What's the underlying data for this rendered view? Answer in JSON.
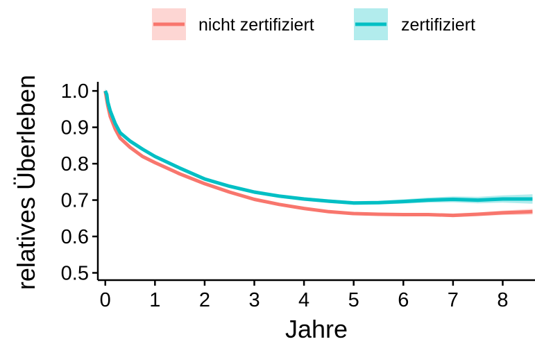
{
  "chart_data": {
    "type": "line",
    "title": "",
    "xlabel": "Jahre",
    "ylabel": "relatives Überleben",
    "xlim": [
      -0.15,
      8.65
    ],
    "ylim": [
      0.48,
      1.025
    ],
    "x_ticks": [
      0,
      1,
      2,
      3,
      4,
      5,
      6,
      7,
      8
    ],
    "y_ticks": [
      0.5,
      0.6,
      0.7,
      0.8,
      0.9,
      1.0
    ],
    "y_tick_labels": [
      "0.5",
      "0.6",
      "0.7",
      "0.8",
      "0.9",
      "1.0"
    ],
    "grid": false,
    "confidence_band": true,
    "legend_position": "top",
    "series": [
      {
        "name": "nicht zertifiziert",
        "color": "#F8766D",
        "x": [
          0,
          0.05,
          0.1,
          0.2,
          0.3,
          0.5,
          0.75,
          1,
          1.5,
          2,
          2.5,
          3,
          3.5,
          4,
          4.5,
          5,
          5.5,
          6,
          6.5,
          7,
          7.5,
          8,
          8.6
        ],
        "values": [
          1.0,
          0.96,
          0.93,
          0.895,
          0.87,
          0.845,
          0.82,
          0.803,
          0.772,
          0.745,
          0.722,
          0.702,
          0.688,
          0.677,
          0.668,
          0.663,
          0.661,
          0.66,
          0.66,
          0.658,
          0.661,
          0.665,
          0.668
        ],
        "band": [
          0.005,
          0.006,
          0.006,
          0.006,
          0.006,
          0.006,
          0.005,
          0.005,
          0.005,
          0.004,
          0.004,
          0.004,
          0.004,
          0.004,
          0.004,
          0.004,
          0.004,
          0.004,
          0.004,
          0.005,
          0.005,
          0.006,
          0.008
        ]
      },
      {
        "name": "zertifiziert",
        "color": "#00BFC4",
        "x": [
          0,
          0.03,
          0.05,
          0.1,
          0.2,
          0.3,
          0.5,
          0.75,
          1,
          1.5,
          2,
          2.5,
          3,
          3.5,
          4,
          4.5,
          5,
          5.5,
          6,
          6.5,
          7,
          7.5,
          8,
          8.6
        ],
        "values": [
          1.0,
          0.99,
          0.97,
          0.945,
          0.91,
          0.885,
          0.862,
          0.84,
          0.82,
          0.788,
          0.758,
          0.738,
          0.722,
          0.711,
          0.703,
          0.697,
          0.692,
          0.693,
          0.696,
          0.7,
          0.702,
          0.7,
          0.703,
          0.703
        ],
        "band": [
          0.006,
          0.008,
          0.008,
          0.007,
          0.007,
          0.006,
          0.006,
          0.005,
          0.005,
          0.005,
          0.005,
          0.005,
          0.005,
          0.005,
          0.005,
          0.005,
          0.005,
          0.005,
          0.006,
          0.007,
          0.008,
          0.009,
          0.01,
          0.013
        ]
      }
    ]
  }
}
